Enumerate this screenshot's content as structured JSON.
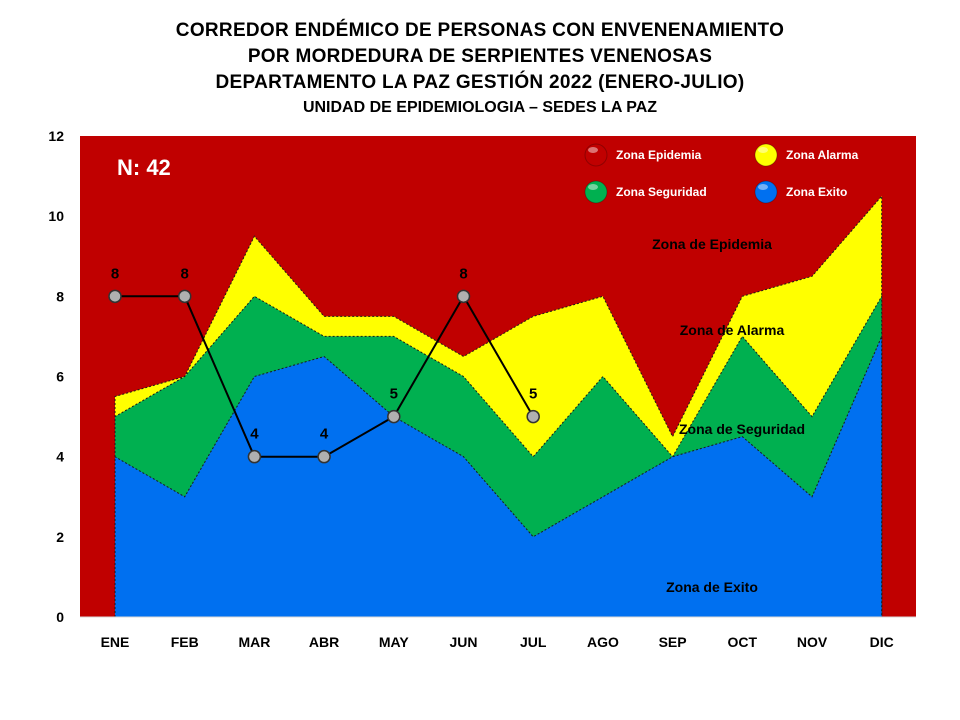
{
  "title": {
    "line1": "CORREDOR ENDÉMICO DE PERSONAS CON ENVENENAMIENTO",
    "line2": "POR MORDEDURA DE SERPIENTES VENENOSAS",
    "line3": "DEPARTAMENTO  LA PAZ GESTIÓN 2022 (ENERO-JULIO)",
    "subtitle": "UNIDAD DE EPIDEMIOLOGIA – SEDES LA PAZ"
  },
  "annotation_n": "N: 42",
  "colors": {
    "epidemia": "#c00000",
    "alarma": "#ffff00",
    "seguridad": "#00b050",
    "exito": "#0070f0",
    "line": "#000000",
    "marker": "#b0b0b0"
  },
  "legend": [
    {
      "name": "Zona Epidemia",
      "color": "#c00000"
    },
    {
      "name": "Zona Alarma",
      "color": "#ffff00"
    },
    {
      "name": "Zona Seguridad",
      "color": "#00b050"
    },
    {
      "name": "Zona Exito",
      "color": "#0070f0"
    }
  ],
  "zone_labels": [
    "Zona de  Epidemia",
    "Zona de Alarma",
    "Zona de Seguridad",
    "Zona de Exito"
  ],
  "chart_data": {
    "type": "area",
    "categories": [
      "ENE",
      "FEB",
      "MAR",
      "ABR",
      "MAY",
      "JUN",
      "JUL",
      "AGO",
      "SEP",
      "OCT",
      "NOV",
      "DIC"
    ],
    "ylim": [
      0,
      12
    ],
    "yticks": [
      0,
      2,
      4,
      6,
      8,
      10,
      12
    ],
    "zones": [
      {
        "name": "Zona Exito",
        "upper": [
          4,
          3,
          6,
          6.5,
          5,
          4,
          2,
          3,
          4,
          4.5,
          3,
          7
        ]
      },
      {
        "name": "Zona Seguridad",
        "upper": [
          5,
          6,
          8,
          7,
          7,
          6,
          4,
          6,
          4,
          7,
          5,
          8
        ]
      },
      {
        "name": "Zona Alarma",
        "upper": [
          5.5,
          6,
          9.5,
          7.5,
          7.5,
          6.5,
          7.5,
          8,
          4.5,
          8,
          8.5,
          10.5
        ]
      },
      {
        "name": "Zona Epidemia",
        "upper": [
          12,
          12,
          12,
          12,
          12,
          12,
          12,
          12,
          12,
          12,
          12,
          12
        ]
      }
    ],
    "cases": {
      "categories": [
        "ENE",
        "FEB",
        "MAR",
        "ABR",
        "MAY",
        "JUN",
        "JUL"
      ],
      "values": [
        8,
        8,
        4,
        4,
        5,
        8,
        5
      ]
    },
    "grid": false,
    "legend_position": "top-right"
  }
}
